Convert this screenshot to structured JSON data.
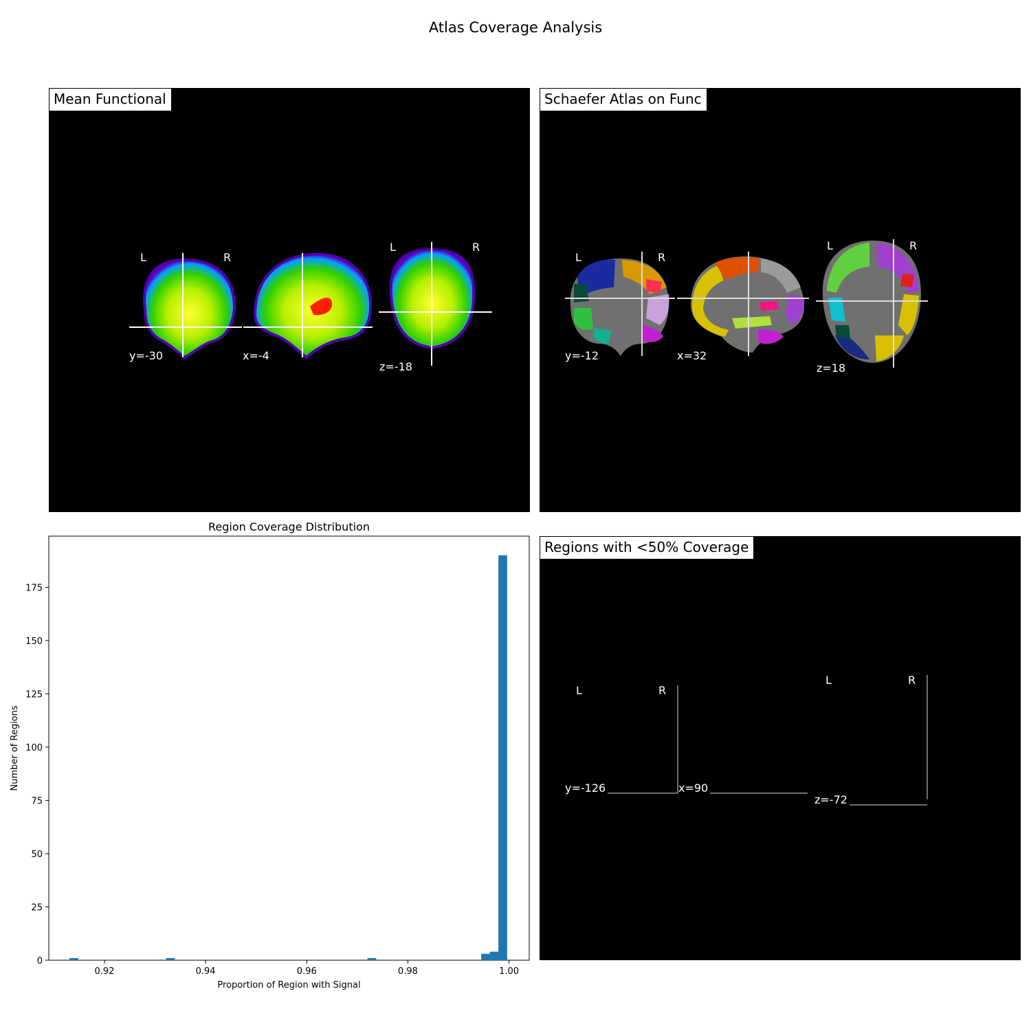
{
  "figure": {
    "title": "Atlas Coverage Analysis"
  },
  "panels": {
    "mean_functional": {
      "title": "Mean Functional",
      "views": [
        {
          "coord": "y=-30",
          "left": "L",
          "right": "R"
        },
        {
          "coord": "x=-4"
        },
        {
          "coord": "z=-18",
          "left": "L",
          "right": "R"
        }
      ]
    },
    "schaefer": {
      "title": "Schaefer Atlas on Func",
      "views": [
        {
          "coord": "y=-12",
          "left": "L",
          "right": "R"
        },
        {
          "coord": "x=32"
        },
        {
          "coord": "z=18",
          "left": "L",
          "right": "R"
        }
      ]
    },
    "low_coverage": {
      "title": "Regions with <50% Coverage",
      "views": [
        {
          "coord": "y=-126",
          "left": "L",
          "right": "R"
        },
        {
          "coord": "x=90"
        },
        {
          "coord": "z=-72",
          "left": "L",
          "right": "R"
        }
      ]
    }
  },
  "chart_data": {
    "type": "bar",
    "title": "Region Coverage Distribution",
    "xlabel": "Proportion of Region with Signal",
    "ylabel": "Number of Regions",
    "xlim": [
      0.909,
      1.004
    ],
    "ylim": [
      0,
      199
    ],
    "xticks": [
      "0.92",
      "0.94",
      "0.96",
      "0.98",
      "1.00"
    ],
    "yticks": [
      "0",
      "25",
      "50",
      "75",
      "100",
      "125",
      "150",
      "175"
    ],
    "color": "#1f77b4",
    "grid": false,
    "bin_width": 0.00173,
    "bins": [
      {
        "x": 0.9131,
        "count": 1
      },
      {
        "x": 0.9322,
        "count": 1
      },
      {
        "x": 0.972,
        "count": 1
      },
      {
        "x": 0.9945,
        "count": 3
      },
      {
        "x": 0.9962,
        "count": 4
      },
      {
        "x": 0.9979,
        "count": 190
      }
    ]
  }
}
